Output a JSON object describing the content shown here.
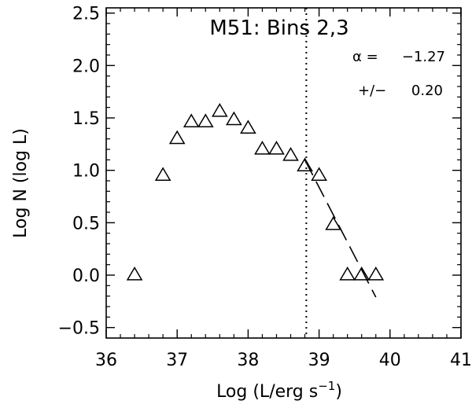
{
  "chart_data": {
    "type": "scatter",
    "title": "M51:  Bins 2,3",
    "xlabel": "Log (L/erg s",
    "xlabel_superscript": "−1",
    "xlabel_suffix": ")",
    "ylabel": "Log N (log L)",
    "xlim": [
      36,
      41
    ],
    "ylim": [
      -0.6,
      2.55
    ],
    "x_ticks": [
      36,
      37,
      38,
      39,
      40,
      41
    ],
    "x_tick_labels": [
      "36",
      "37",
      "38",
      "39",
      "40",
      "41"
    ],
    "y_ticks": [
      -0.5,
      0.0,
      0.5,
      1.0,
      1.5,
      2.0,
      2.5
    ],
    "y_tick_labels": [
      "−0.5",
      "0.0",
      "0.5",
      "1.0",
      "1.5",
      "2.0",
      "2.5"
    ],
    "series": [
      {
        "marker": "triangle",
        "points": [
          [
            36.4,
            0.0
          ],
          [
            36.8,
            0.95
          ],
          [
            37.0,
            1.3
          ],
          [
            37.2,
            1.46
          ],
          [
            37.4,
            1.46
          ],
          [
            37.6,
            1.56
          ],
          [
            37.8,
            1.48
          ],
          [
            38.0,
            1.4
          ],
          [
            38.2,
            1.2
          ],
          [
            38.4,
            1.2
          ],
          [
            38.6,
            1.14
          ],
          [
            38.8,
            1.04
          ],
          [
            39.0,
            0.95
          ],
          [
            39.2,
            0.48
          ],
          [
            39.4,
            0.0
          ],
          [
            39.6,
            0.0
          ],
          [
            39.8,
            0.0
          ]
        ]
      }
    ],
    "fit_line": {
      "style": "dashed",
      "points": [
        [
          38.8,
          1.1
        ],
        [
          39.8,
          -0.21
        ]
      ]
    },
    "vertical_line": {
      "x": 38.82,
      "style": "dotted"
    },
    "annotations": {
      "alpha_label": "α =",
      "alpha_value": "−1.27",
      "err_label": "+/−",
      "err_value": "0.20"
    }
  }
}
